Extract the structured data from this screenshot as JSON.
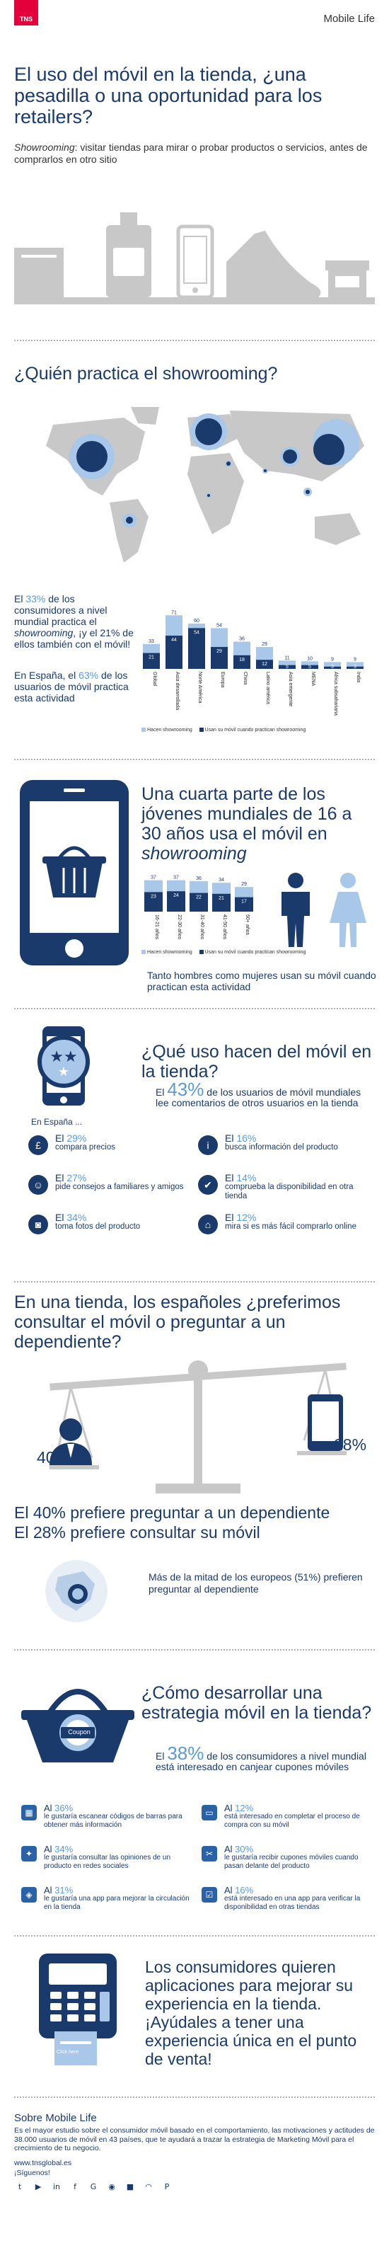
{
  "brand": {
    "logo": "TNS",
    "product": "Mobile Life"
  },
  "header": {
    "title": "El uso del móvil en la tienda, ¿una pesadilla o una oportunidad para los retailers?",
    "subtitle_em": "Showrooming",
    "subtitle_rest": ": visitar tiendas para mirar o probar productos o servicios, antes de comprarlos en otro sitio"
  },
  "who": {
    "title": "¿Quién practica el showrooming?",
    "stat1_pre": "El ",
    "stat1_pct": "33%",
    "stat1_mid": " de los consumidores a nivel mundial practica el ",
    "stat1_em": "showrooming",
    "stat1_post": ", ¡y el 21% de ellos también con el móvil!",
    "stat2_pre": "En España",
    "stat2_mid": ", el ",
    "stat2_pct": "63%",
    "stat2_post": " de los usuarios de móvil practica esta actividad",
    "legend_total": "Hacen showrooming",
    "legend_mobile": "Usan su móvil cuando practican showrooming"
  },
  "chart_data": [
    {
      "type": "bar",
      "categories": [
        "Global",
        "Asia desarrollada",
        "Norte América",
        "Europa",
        "China",
        "Latino américa",
        "Asia emergente",
        "MENA",
        "África subsahariana",
        "India"
      ],
      "series": [
        {
          "name": "Hacen showrooming",
          "values": [
            33,
            71,
            60,
            54,
            36,
            29,
            11,
            10,
            9,
            9
          ]
        },
        {
          "name": "Usan su móvil cuando practican showrooming",
          "values": [
            21,
            44,
            54,
            29,
            18,
            12,
            5,
            5,
            3,
            3
          ]
        }
      ],
      "colors": [
        "#a9c7e8",
        "#1a3a6b"
      ]
    },
    {
      "type": "bar",
      "categories": [
        "16-21 años",
        "22-30 años",
        "31-40 años",
        "41-50 años",
        "50+ años"
      ],
      "series": [
        {
          "name": "Hacen showrooming",
          "values": [
            37,
            37,
            36,
            34,
            29
          ]
        },
        {
          "name": "Usan su móvil cuando practican showrooming",
          "values": [
            23,
            24,
            22,
            21,
            17
          ]
        }
      ],
      "colors": [
        "#a9c7e8",
        "#1a3a6b"
      ]
    }
  ],
  "young": {
    "title_line": "Una cuarta parte de los jóvenes mundiales de 16 a 30 años usa el móvil en ",
    "title_em": "showrooming",
    "men_women": "Tanto hombres como mujeres usan su móvil cuando practican esta actividad",
    "legend_total": "Hacen showrooming",
    "legend_mobile": "Usan su móvil cuando practican showrooming"
  },
  "usage": {
    "title": "¿Qué uso hacen del móvil en la tienda?",
    "spain": "En España ...",
    "lead_pre": "El ",
    "lead_pct": "43%",
    "lead_post": " de los usuarios de móvil mundiales lee comentarios de otros usuarios en la tienda",
    "items": [
      {
        "icon": "pound-icon",
        "glyph": "£",
        "pct": "29%",
        "text": "compara precios"
      },
      {
        "icon": "info-icon",
        "glyph": "i",
        "pct": "16%",
        "text": "busca información del producto"
      },
      {
        "icon": "people-icon",
        "glyph": "☺",
        "pct": "27%",
        "text": "pide consejos a familiares y amigos"
      },
      {
        "icon": "check-icon",
        "glyph": "✔",
        "pct": "14%",
        "text": "comprueba la disponibilidad en otra tienda"
      },
      {
        "icon": "camera-icon",
        "glyph": "◙",
        "pct": "34%",
        "text": "toma fotos del producto"
      },
      {
        "icon": "cart-icon",
        "glyph": "⌂",
        "pct": "12%",
        "text": "mira si es más fácil comprarlo online"
      }
    ],
    "el": "El "
  },
  "ask": {
    "title": "En una tienda, los españoles ¿preferimos consultar el móvil o preguntar a un dependiente?",
    "left_pct": "40%",
    "right_pct": "28%",
    "result1": "El 40% prefiere preguntar a un dependiente",
    "result2": "El 28% prefiere consultar su móvil",
    "europe_pre": "Más de la mitad de los europeos (51%) prefieren preguntar al dependiente"
  },
  "strategy": {
    "title": "¿Cómo desarrollar una estrategia móvil en la tienda?",
    "lead_pre": "El ",
    "lead_pct": "38%",
    "lead_post": " de los consumidores a nivel mundial está interesado en canjear cupones móviles",
    "coupon_label": "Coupon",
    "items": [
      {
        "icon": "qr-icon",
        "glyph": "▦",
        "pct": "36%",
        "text": "le gustaría escanear códigos de barras para obtener más información"
      },
      {
        "icon": "card-icon",
        "glyph": "▭",
        "pct": "12%",
        "text": "está interesado en completar el proceso de compra con su móvil"
      },
      {
        "icon": "twitter-icon",
        "glyph": "✦",
        "pct": "34%",
        "text": "le gustaría consultar las opiniones de un producto en redes sociales"
      },
      {
        "icon": "coupon-icon",
        "glyph": "✂",
        "pct": "30%",
        "text": "le gustaría recibir cupones móviles cuando pasan delante del producto"
      },
      {
        "icon": "map-icon",
        "glyph": "◈",
        "pct": "31%",
        "text": "le gustaría una app para mejorar la circulación en la tienda"
      },
      {
        "icon": "phone-check-icon",
        "glyph": "☑",
        "pct": "16%",
        "text": "está interesado en una app para verificar la disponibilidad en otras tiendas"
      }
    ],
    "al": "Al "
  },
  "apps": {
    "text": "Los consumidores quieren aplicaciones para mejorar su experiencia en la tienda. ¡Ayúdales a tener una experiencia única en el punto de venta!",
    "terminal_label": "Click here"
  },
  "footer": {
    "title": "Sobre Mobile Life",
    "body": "Es el mayor estudio sobre el consumidor móvil basado en el comportamiento, las motivaciones y actitudes de 38.000 usuarios de móvil en 43 países, que te ayudará a trazar la estrategia de Marketing Móvil para el crecimiento de tu negocio.",
    "url": "www.tnsglobal.es",
    "follow": "¡Síguenos!",
    "social": [
      "twitter-icon",
      "youtube-icon",
      "linkedin-icon",
      "facebook-icon",
      "google-plus-icon",
      "flickr-icon",
      "slideshare-icon",
      "rss-icon",
      "pinterest-icon"
    ],
    "social_glyphs": [
      "t",
      "▶",
      "in",
      "f",
      "G",
      "◉",
      "■",
      "◠",
      "P"
    ]
  }
}
